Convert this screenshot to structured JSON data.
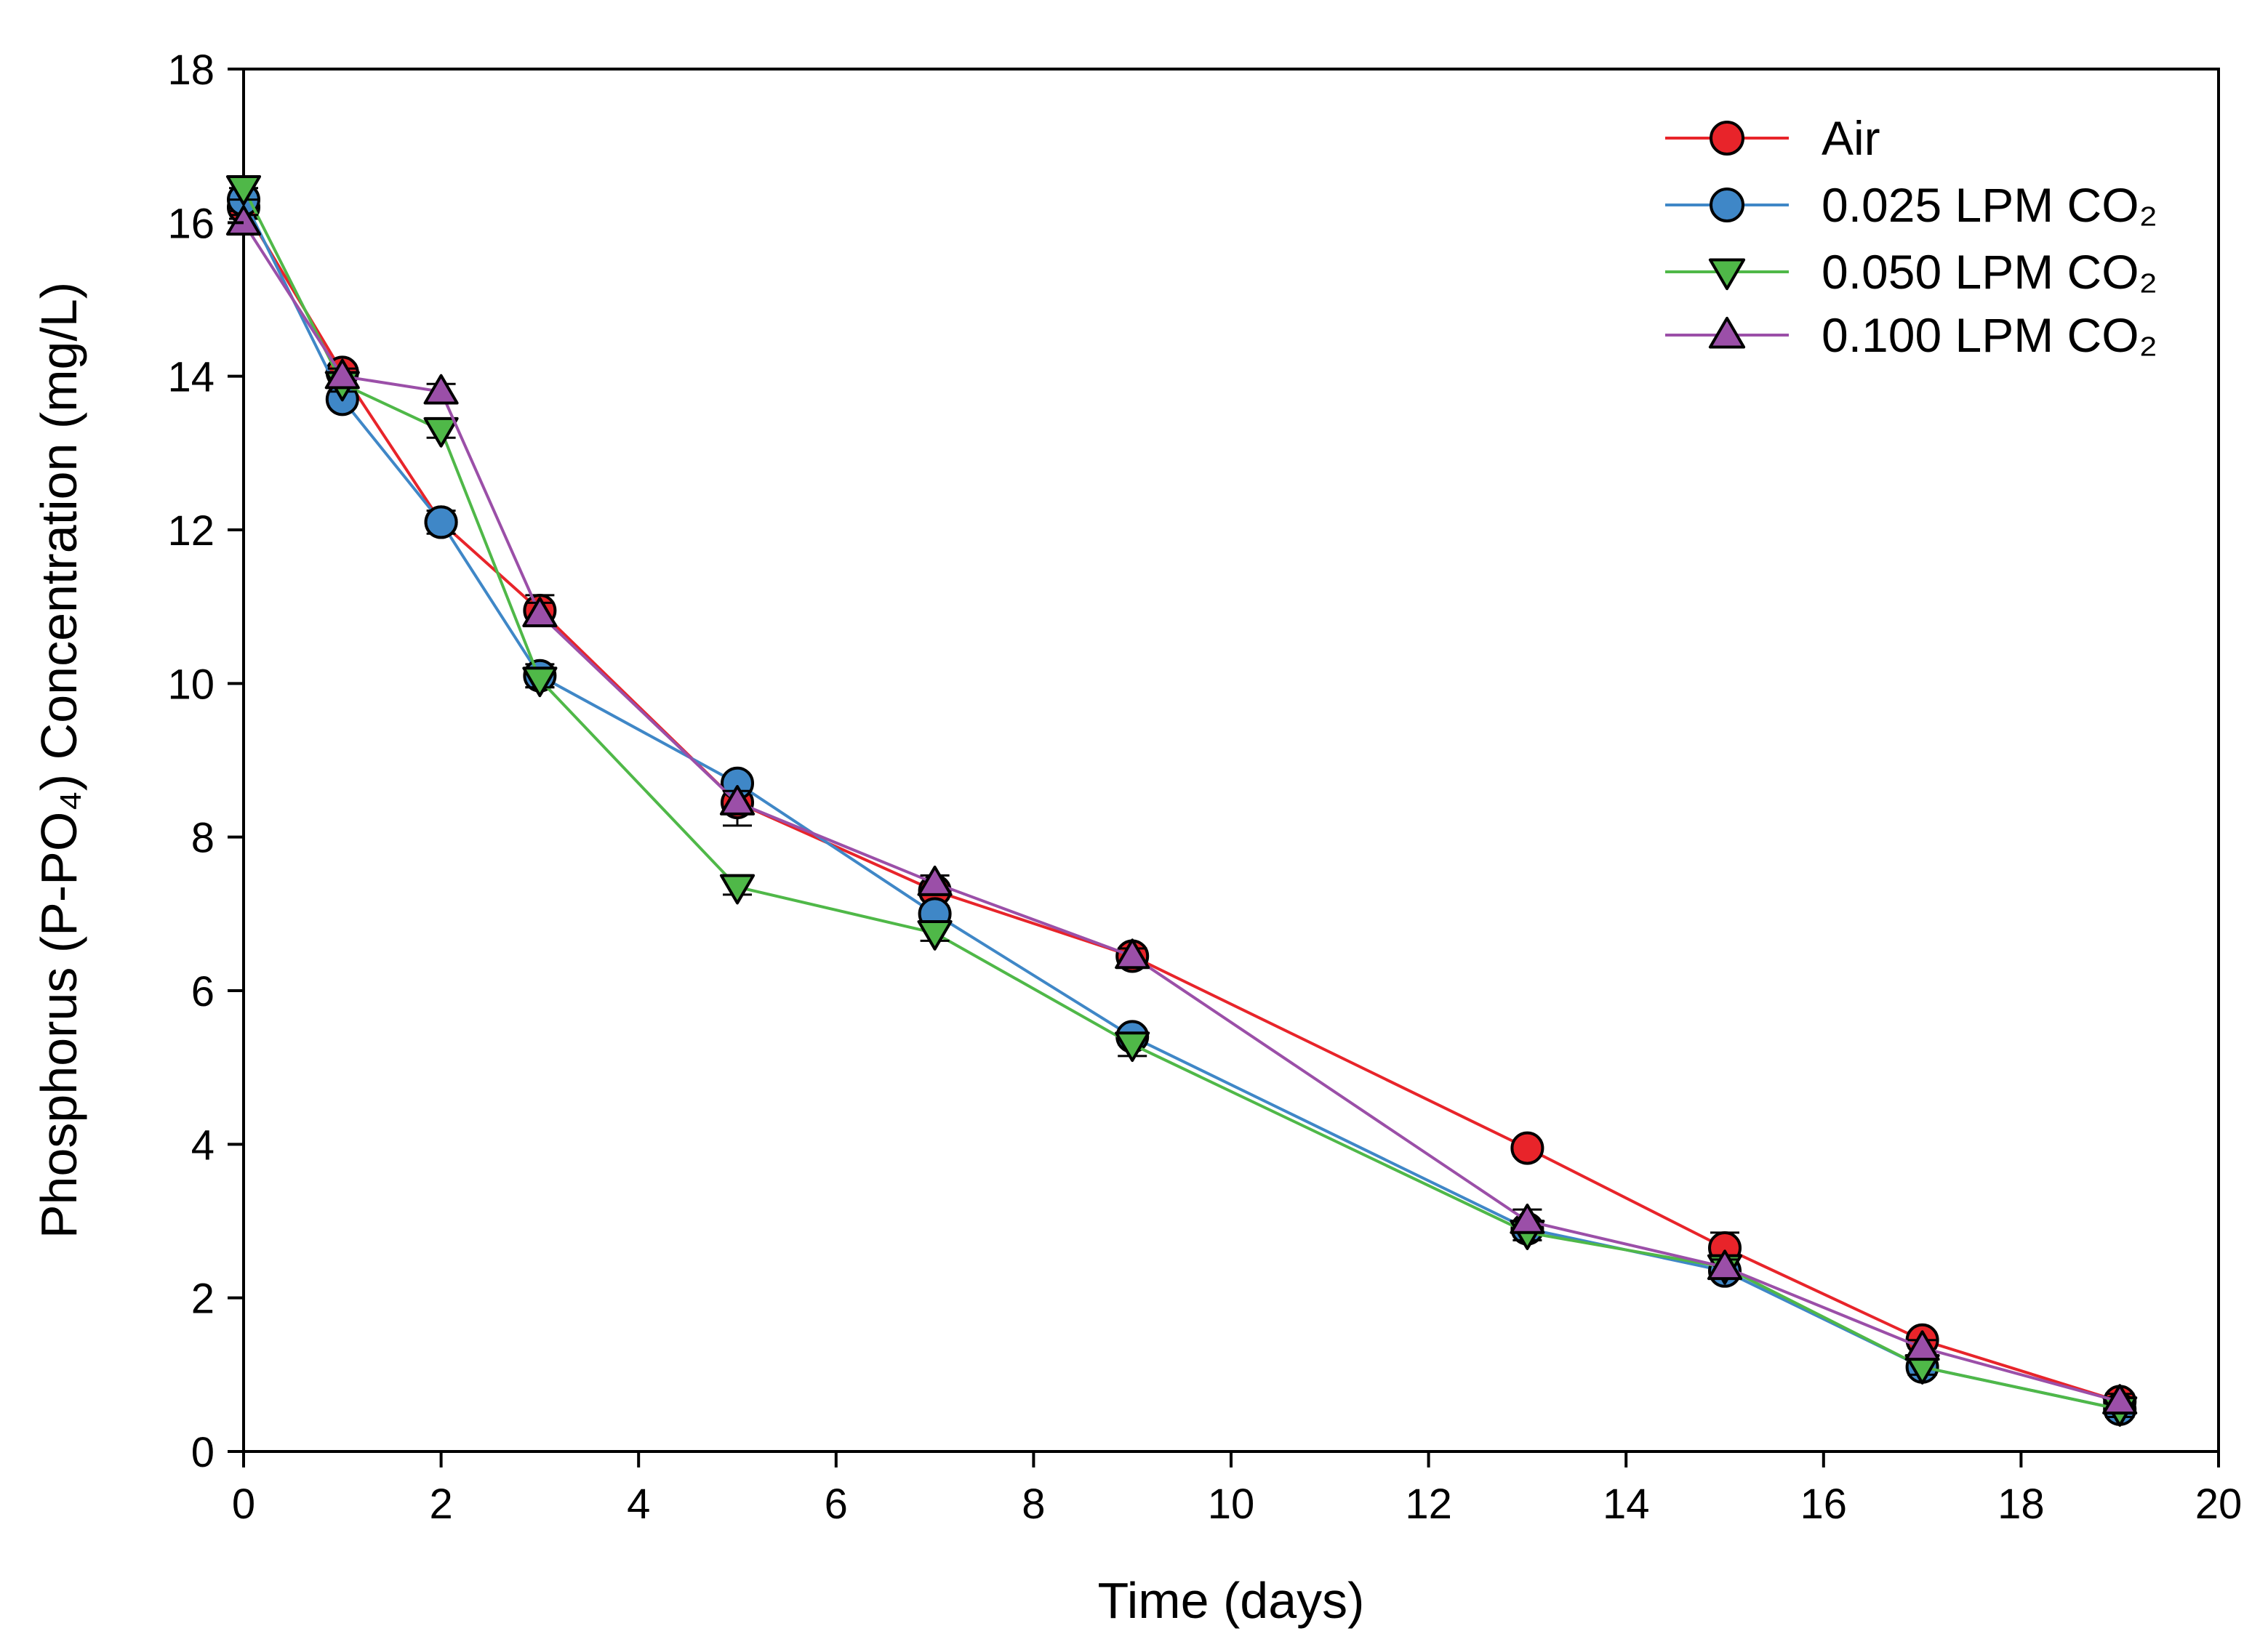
{
  "chart_data": {
    "type": "line",
    "title": "",
    "xlabel": "Time (days)",
    "ylabel": "Phosphorus (P-PO₄)  Concentration (mg/L)",
    "xlim": [
      0,
      20
    ],
    "ylim": [
      0,
      18
    ],
    "x_ticks": [
      "0",
      "2",
      "4",
      "6",
      "8",
      "10",
      "12",
      "14",
      "16",
      "18",
      "20"
    ],
    "y_ticks": [
      "0",
      "2",
      "4",
      "6",
      "8",
      "10",
      "12",
      "14",
      "16",
      "18"
    ],
    "grid": false,
    "legend_position": "top-right",
    "x": [
      0,
      1,
      2,
      3,
      5,
      7,
      9,
      13,
      15,
      17,
      19
    ],
    "series": [
      {
        "name": "Air",
        "color": "#e8242a",
        "marker": "circle",
        "values": [
          16.2,
          14.05,
          12.1,
          10.95,
          8.45,
          7.3,
          6.45,
          3.95,
          2.65,
          1.45,
          0.65
        ],
        "errors": [
          0.15,
          0.1,
          0.1,
          0.2,
          0.3,
          0.1,
          0.1,
          0.1,
          0.2,
          0.1,
          0.1
        ]
      },
      {
        "name": "0.025 LPM CO₂",
        "color": "#3f87c7",
        "marker": "circle",
        "values": [
          16.3,
          13.7,
          12.1,
          10.1,
          8.7,
          7.0,
          5.4,
          2.9,
          2.35,
          1.1,
          0.55
        ],
        "errors": [
          0.15,
          0.1,
          0.15,
          0.15,
          0.1,
          0.1,
          0.1,
          0.1,
          0.1,
          0.1,
          0.1
        ]
      },
      {
        "name": "0.050 LPM CO₂",
        "color": "#4fb848",
        "marker": "triangle-down",
        "values": [
          16.45,
          13.9,
          13.3,
          10.05,
          7.35,
          6.75,
          5.3,
          2.85,
          2.4,
          1.1,
          0.55
        ],
        "errors": [
          0.15,
          0.1,
          0.1,
          0.1,
          0.1,
          0.1,
          0.15,
          0.1,
          0.1,
          0.1,
          0.1
        ]
      },
      {
        "name": "0.100 LPM CO₂",
        "color": "#9b4fa8",
        "marker": "triangle-up",
        "values": [
          16.0,
          14.0,
          13.8,
          10.9,
          8.45,
          7.4,
          6.45,
          3.0,
          2.4,
          1.35,
          0.65
        ],
        "errors": [
          0.1,
          0.1,
          0.1,
          0.15,
          0.15,
          0.1,
          0.1,
          0.15,
          0.1,
          0.1,
          0.1
        ]
      }
    ]
  }
}
